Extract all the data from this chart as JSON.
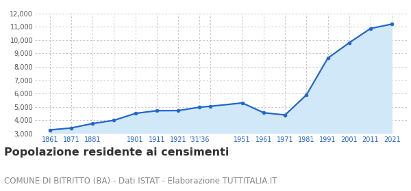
{
  "x_labels": [
    "1861",
    "1871",
    "1881",
    "",
    "1901",
    "1911",
    "1921",
    "'31'36",
    "",
    "1951",
    "1961",
    "1971",
    "1981",
    "1991",
    "2001",
    "2011",
    "2021"
  ],
  "x_positions": [
    1861,
    1871,
    1881,
    1891,
    1901,
    1911,
    1921,
    1931,
    1936,
    1951,
    1961,
    1971,
    1981,
    1991,
    2001,
    2011,
    2021
  ],
  "y_values": [
    3280,
    3430,
    3760,
    4000,
    4520,
    4720,
    4730,
    4980,
    5050,
    5300,
    4570,
    4400,
    5900,
    8650,
    9800,
    10870,
    11200
  ],
  "line_color": "#2266cc",
  "fill_color": "#d0e8f8",
  "marker": "o",
  "marker_size": 3.5,
  "line_width": 1.6,
  "ylim": [
    3000,
    12000
  ],
  "yticks": [
    3000,
    4000,
    5000,
    6000,
    7000,
    8000,
    9000,
    10000,
    11000,
    12000
  ],
  "grid_color": "#bbbbbb",
  "background_color": "#ffffff",
  "title": "Popolazione residente ai censimenti",
  "subtitle": "COMUNE DI BITRITTO (BA) - Dati ISTAT - Elaborazione TUTTITALIA.IT",
  "title_fontsize": 11.5,
  "subtitle_fontsize": 8.5,
  "title_color": "#333333",
  "subtitle_color": "#888888",
  "tick_color": "#2266cc",
  "ytick_color": "#555555",
  "xlim_left": 1854,
  "xlim_right": 2028,
  "fill_start_x": 1861
}
